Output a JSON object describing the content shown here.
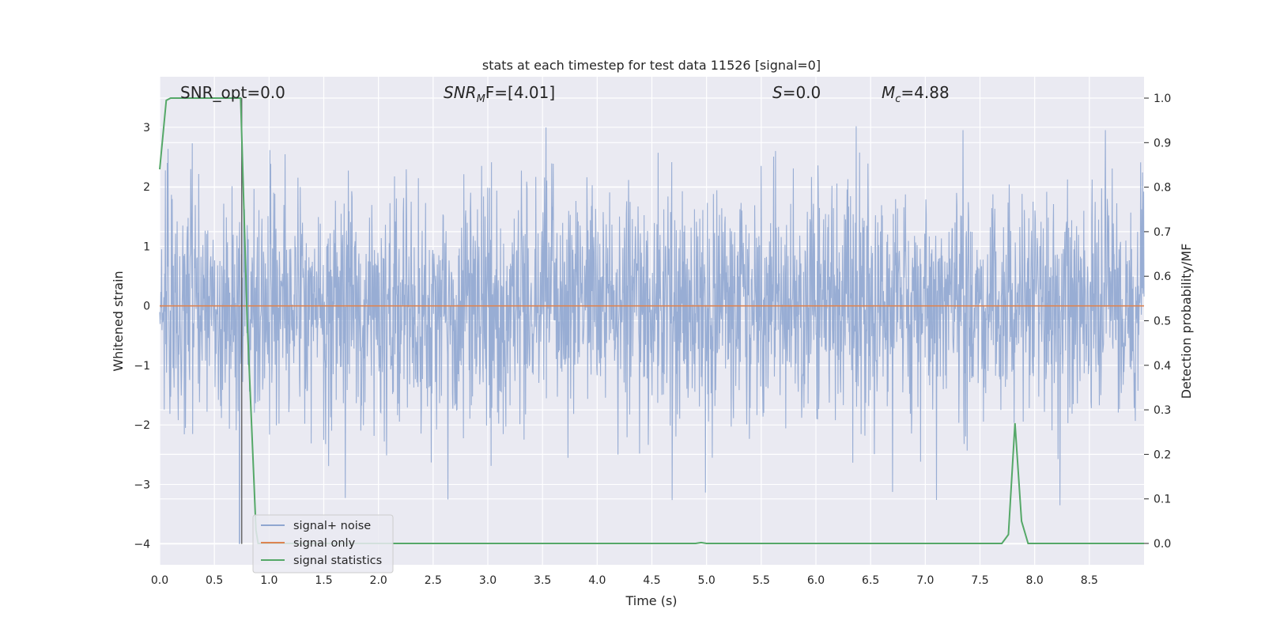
{
  "chart_data": {
    "type": "line",
    "title": "stats at each timestep for test data 11526 [signal=0]",
    "xlabel": "Time (s)",
    "ylabel_left": "Whitened strain",
    "ylabel_right": "Detection probability/MF",
    "xlim": [
      0,
      9.0
    ],
    "ylim_left": [
      -4.35,
      3.85
    ],
    "ylim_right": [
      -0.048,
      1.048
    ],
    "x_ticks": [
      "0.0",
      "0.5",
      "1.0",
      "1.5",
      "2.0",
      "2.5",
      "3.0",
      "3.5",
      "4.0",
      "4.5",
      "5.0",
      "5.5",
      "6.0",
      "6.5",
      "7.0",
      "7.5",
      "8.0",
      "8.5"
    ],
    "y_ticks_left": [
      "−4",
      "−3",
      "−2",
      "−1",
      "0",
      "1",
      "2",
      "3"
    ],
    "y_ticks_right": [
      "0.0",
      "0.1",
      "0.2",
      "0.3",
      "0.4",
      "0.5",
      "0.6",
      "0.7",
      "0.8",
      "0.9",
      "1.0"
    ],
    "grid": true,
    "legend_position": "lower-left",
    "annotations": {
      "snr_opt": "SNR_opt=0.0",
      "snr_mf_label": "SNR",
      "snr_mf_sub": "M",
      "snr_mf_rest": "F=[4.01]",
      "s_label": "S",
      "s_rest": "=0.0",
      "mc_label": "M",
      "mc_sub": "c",
      "mc_rest": "=4.88"
    },
    "series": [
      {
        "name": "signal+ noise",
        "color": "#8fa6d0",
        "description_amplitude": "whitened noise, sampled at 2048 Hz; visible envelope roughly ±2.6, peaks up to ±3.5",
        "duration_s": 9.0,
        "spike": {
          "x": 0.73,
          "y": -4.0
        }
      },
      {
        "name": "signal only",
        "color": "#dd8452",
        "x": [
          0.0,
          9.0
        ],
        "y": [
          0.0,
          0.0
        ]
      },
      {
        "name": "signal statistics",
        "color": "#55a868",
        "axis": "right",
        "x": [
          0.0,
          0.06,
          0.1,
          0.2,
          0.3,
          0.4,
          0.5,
          0.6,
          0.7,
          0.74,
          0.8,
          0.86,
          0.88,
          0.9,
          1.0,
          2.0,
          3.0,
          4.0,
          4.9,
          4.95,
          5.0,
          6.0,
          7.0,
          7.7,
          7.76,
          7.82,
          7.88,
          7.94,
          8.0,
          9.0
        ],
        "y": [
          0.84,
          0.995,
          1.0,
          1.0,
          1.0,
          1.0,
          1.0,
          1.0,
          1.0,
          1.0,
          0.5,
          0.15,
          0.03,
          0.0,
          0.0,
          0.0,
          0.0,
          0.0,
          0.0,
          0.002,
          0.0,
          0.0,
          0.0,
          0.0,
          0.02,
          0.27,
          0.05,
          0.0,
          0.0,
          0.0
        ]
      }
    ]
  },
  "colors": {
    "plot_bg": "#eaeaf2",
    "grid": "#ffffff",
    "noise": "#8fa6d0",
    "signal_only": "#dd8452",
    "stats": "#55a868",
    "marker_line": "#555555"
  }
}
